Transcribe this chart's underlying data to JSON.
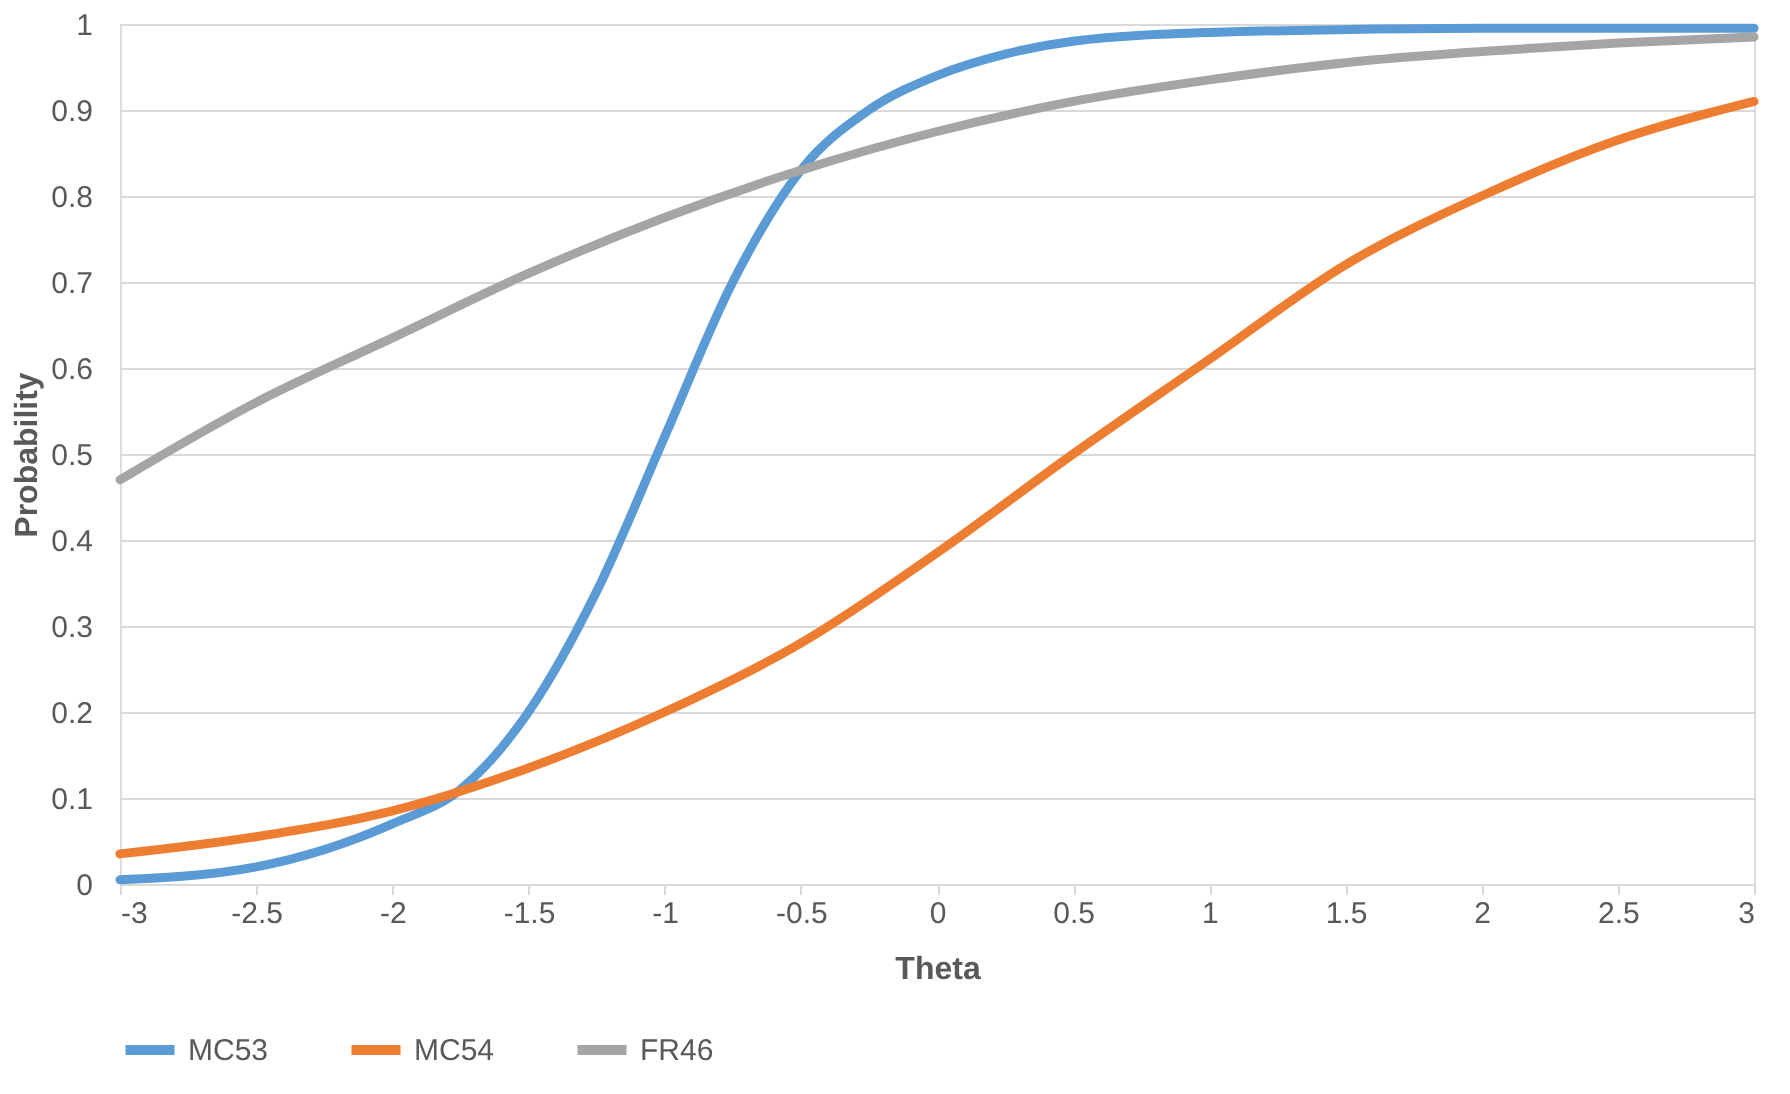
{
  "chart_data": {
    "type": "line",
    "xlabel": "Theta",
    "ylabel": "Probability",
    "xlim": [
      -3,
      3
    ],
    "xticks": [
      -3,
      -2.5,
      -2,
      -1.5,
      -1,
      -0.5,
      0,
      0.5,
      1,
      1.5,
      2,
      2.5,
      3
    ],
    "ylim": [
      0,
      1
    ],
    "yticks": [
      0,
      0.1,
      0.2,
      0.3,
      0.4,
      0.5,
      0.6,
      0.7,
      0.8,
      0.9,
      1
    ],
    "grid": "y",
    "legend": "bottom",
    "marker": "none",
    "line_style": "solid",
    "series": [
      {
        "name": "MC53",
        "color": "#5b9bd5",
        "x": [
          -3,
          -2.5,
          -2,
          -1.75,
          -1.5,
          -1.25,
          -1,
          -0.75,
          -0.5,
          -0.25,
          0,
          0.25,
          0.5,
          1,
          2,
          3
        ],
        "values": [
          0.005,
          0.02,
          0.07,
          0.11,
          0.2,
          0.34,
          0.52,
          0.7,
          0.83,
          0.9,
          0.94,
          0.965,
          0.98,
          0.99,
          0.995,
          0.995
        ]
      },
      {
        "name": "MC54",
        "color": "#ed7d31",
        "x": [
          -3,
          -2.5,
          -2,
          -1.5,
          -1,
          -0.5,
          0,
          0.5,
          1,
          1.5,
          2,
          2.5,
          3
        ],
        "values": [
          0.035,
          0.055,
          0.085,
          0.135,
          0.2,
          0.28,
          0.385,
          0.5,
          0.61,
          0.72,
          0.8,
          0.865,
          0.91
        ]
      },
      {
        "name": "FR46",
        "color": "#a5a5a5",
        "x": [
          -3,
          -2.5,
          -2,
          -1.5,
          -1,
          -0.5,
          0,
          0.5,
          1,
          1.5,
          2,
          2.5,
          3
        ],
        "values": [
          0.47,
          0.56,
          0.635,
          0.71,
          0.775,
          0.83,
          0.875,
          0.91,
          0.935,
          0.955,
          0.968,
          0.978,
          0.985
        ]
      }
    ]
  }
}
